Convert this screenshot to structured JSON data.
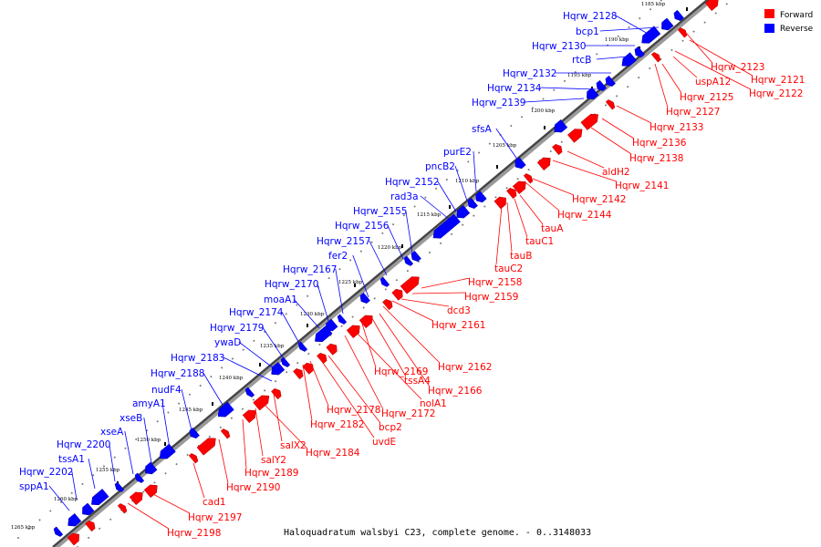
{
  "title": "Haloquadratum walsbyi C23, complete genome. - 0..3148033",
  "colors": {
    "forward": "#ff0000",
    "reverse": "#0000ff"
  },
  "legend": [
    {
      "name": "legend-forward",
      "label": "Forward",
      "strand": "forward"
    },
    {
      "name": "legend-reverse",
      "label": "Reverse",
      "strand": "reverse"
    }
  ],
  "ruler_kbp": [
    {
      "kbp": 1185,
      "label": "1185 kbp"
    },
    {
      "kbp": 1190,
      "label": "1190 kbp"
    },
    {
      "kbp": 1195,
      "label": "1195 kbp"
    },
    {
      "kbp": 1200,
      "label": "1200 kbp"
    },
    {
      "kbp": 1205,
      "label": "1205 kbp"
    },
    {
      "kbp": 1210,
      "label": "1210 kbp"
    },
    {
      "kbp": 1215,
      "label": "1215 kbp"
    },
    {
      "kbp": 1220,
      "label": "1220 kbp"
    },
    {
      "kbp": 1225,
      "label": "1225 kbp"
    },
    {
      "kbp": 1230,
      "label": "1230 kbp"
    },
    {
      "kbp": 1235,
      "label": "1235 kbp"
    },
    {
      "kbp": 1240,
      "label": "1240 kbp"
    },
    {
      "kbp": 1245,
      "label": "1245 kbp"
    },
    {
      "kbp": 1250,
      "label": "1250 kbp"
    },
    {
      "kbp": 1255,
      "label": "1255 kbp"
    },
    {
      "kbp": 1260,
      "label": "1260 kbp"
    },
    {
      "kbp": 1265,
      "label": "1265 kbp"
    }
  ],
  "reverse_labels": [
    "Hqrw_2128",
    "bcp1",
    "Hqrw_2130",
    "rtcB",
    "Hqrw_2132",
    "Hqrw_2134",
    "Hqrw_2139",
    "sfsA",
    "purE2",
    "pncB2",
    "Hqrw_2152",
    "rad3a",
    "Hqrw_2155",
    "Hqrw_2156",
    "Hqrw_2157",
    "fer2",
    "Hqrw_2167",
    "Hqrw_2170",
    "moaA1",
    "Hqrw_2174",
    "Hqrw_2179",
    "ywaD",
    "Hqrw_2183",
    "Hqrw_2188",
    "nudF4",
    "amyA1",
    "xseB",
    "xseA",
    "Hqrw_2200",
    "tssA1",
    "Hqrw_2202",
    "sppA1"
  ],
  "forward_labels": [
    "Hqrw_2123",
    "Hqrw_2121",
    "Hqrw_2122",
    "uspA12",
    "Hqrw_2125",
    "Hqrw_2127",
    "Hqrw_2133",
    "Hqrw_2136",
    "Hqrw_2138",
    "aldH2",
    "Hqrw_2141",
    "Hqrw_2142",
    "Hqrw_2144",
    "tauA",
    "tauC1",
    "tauB",
    "tauC2",
    "Hqrw_2158",
    "Hqrw_2159",
    "dcd3",
    "Hqrw_2161",
    "Hqrw_2162",
    "Hqrw_2169",
    "tssA4",
    "Hqrw_2166",
    "nolA1",
    "Hqrw_2172",
    "Hqrw_2178",
    "bcp2",
    "Hqrw_2182",
    "uvdE",
    "salX2",
    "Hqrw_2184",
    "salY2",
    "Hqrw_2189",
    "Hqrw_2190",
    "cad1",
    "Hqrw_2197",
    "Hqrw_2198"
  ]
}
